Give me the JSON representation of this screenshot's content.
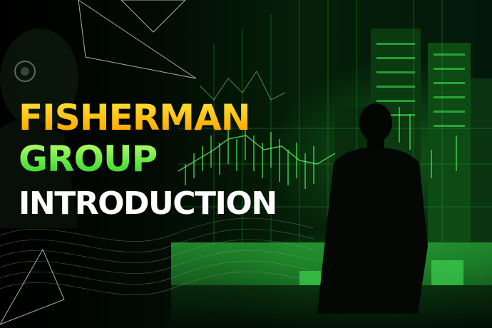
{
  "headline": {
    "line1": "FISHERMAN",
    "line2": "GROUP",
    "line3": "INTRODUCTION"
  },
  "colors": {
    "line1": "#ffb400",
    "line2": "#55e640",
    "line3": "#ffffff",
    "accent_green": "#2bd93c",
    "background": "#000000"
  },
  "icons": [
    "robot-figure-icon",
    "businessman-silhouette-icon",
    "stock-chart-background",
    "city-skyline-icon"
  ]
}
